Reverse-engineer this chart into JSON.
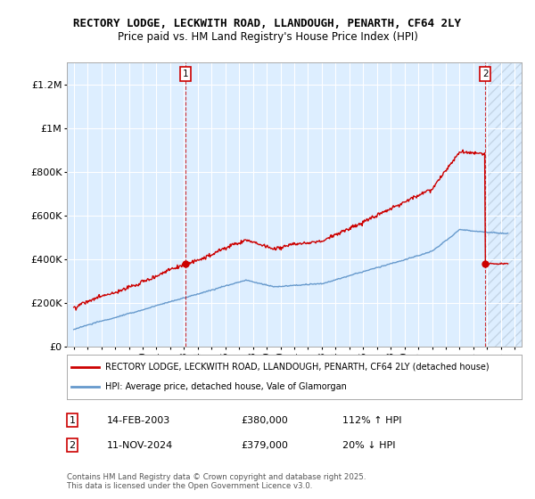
{
  "title": "RECTORY LODGE, LECKWITH ROAD, LLANDOUGH, PENARTH, CF64 2LY",
  "subtitle": "Price paid vs. HM Land Registry's House Price Index (HPI)",
  "legend_line1": "RECTORY LODGE, LECKWITH ROAD, LLANDOUGH, PENARTH, CF64 2LY (detached house)",
  "legend_line2": "HPI: Average price, detached house, Vale of Glamorgan",
  "annotation1_label": "1",
  "annotation1_date": "14-FEB-2003",
  "annotation1_price": "£380,000",
  "annotation1_hpi": "112% ↑ HPI",
  "annotation2_label": "2",
  "annotation2_date": "11-NOV-2024",
  "annotation2_price": "£379,000",
  "annotation2_hpi": "20% ↓ HPI",
  "footnote": "Contains HM Land Registry data © Crown copyright and database right 2025.\nThis data is licensed under the Open Government Licence v3.0.",
  "red_color": "#cc0000",
  "blue_color": "#6699cc",
  "bg_color": "#ddeeff",
  "plot_bg": "#ffffff",
  "ylim_min": 0,
  "ylim_max": 1300000,
  "xlim_min": 1994.5,
  "xlim_max": 2027.5,
  "sale1_year": 2003.1,
  "sale1_value": 380000,
  "sale2_year": 2024.87,
  "sale2_value": 379000
}
